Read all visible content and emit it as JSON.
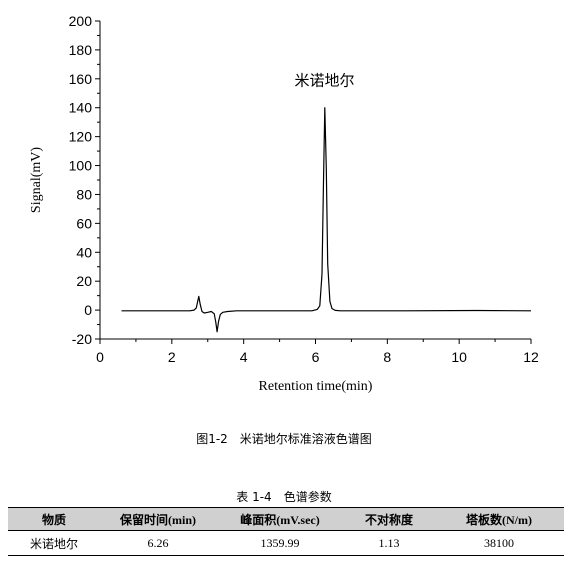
{
  "chart_data": {
    "type": "line",
    "title": "米诺地尔",
    "xlabel": "Retention time(min)",
    "ylabel": "Signal(mV)",
    "xlim": [
      0,
      12
    ],
    "ylim": [
      -20,
      200
    ],
    "x_ticks": [
      0,
      2,
      4,
      6,
      8,
      10,
      12
    ],
    "y_ticks": [
      -20,
      0,
      20,
      40,
      60,
      80,
      100,
      120,
      140,
      160,
      180,
      200
    ],
    "grid": false,
    "legend": "none",
    "line_color": "#000000",
    "annotations": [
      {
        "text": "米诺地尔",
        "x": 6.25,
        "y": 158
      }
    ],
    "series": [
      {
        "x": [
          0.6,
          2.5,
          2.62,
          2.68,
          2.72,
          2.75,
          2.79,
          2.84,
          2.9,
          3.0,
          3.1,
          3.18,
          3.22,
          3.26,
          3.3,
          3.35,
          3.42,
          3.55,
          3.8,
          5.9,
          6.05,
          6.12,
          6.18,
          6.22,
          6.26,
          6.3,
          6.34,
          6.4,
          6.46,
          6.55,
          6.7,
          8.5,
          10.5,
          12.0
        ],
        "y": [
          -0.5,
          -0.5,
          0,
          1.5,
          6,
          9.5,
          4,
          -1,
          -2,
          -1.5,
          -1,
          -2.5,
          -8,
          -15,
          -8,
          -3,
          -1.5,
          -1,
          -0.5,
          -0.5,
          0.5,
          3,
          25,
          85,
          140,
          98,
          32,
          6,
          1,
          -0.2,
          -0.5,
          -0.5,
          -0.3,
          -0.5
        ]
      }
    ]
  },
  "figure": {
    "caption": "图1-2　米诺地尔标准溶液色谱图"
  },
  "table": {
    "title": "表 1-4　色谱参数",
    "headers": [
      "物质",
      "保留时间(min)",
      "峰面积(mV.sec)",
      "不对称度",
      "塔板数(N/m)"
    ],
    "rows": [
      [
        "米诺地尔",
        "6.26",
        "1359.99",
        "1.13",
        "38100"
      ]
    ]
  }
}
